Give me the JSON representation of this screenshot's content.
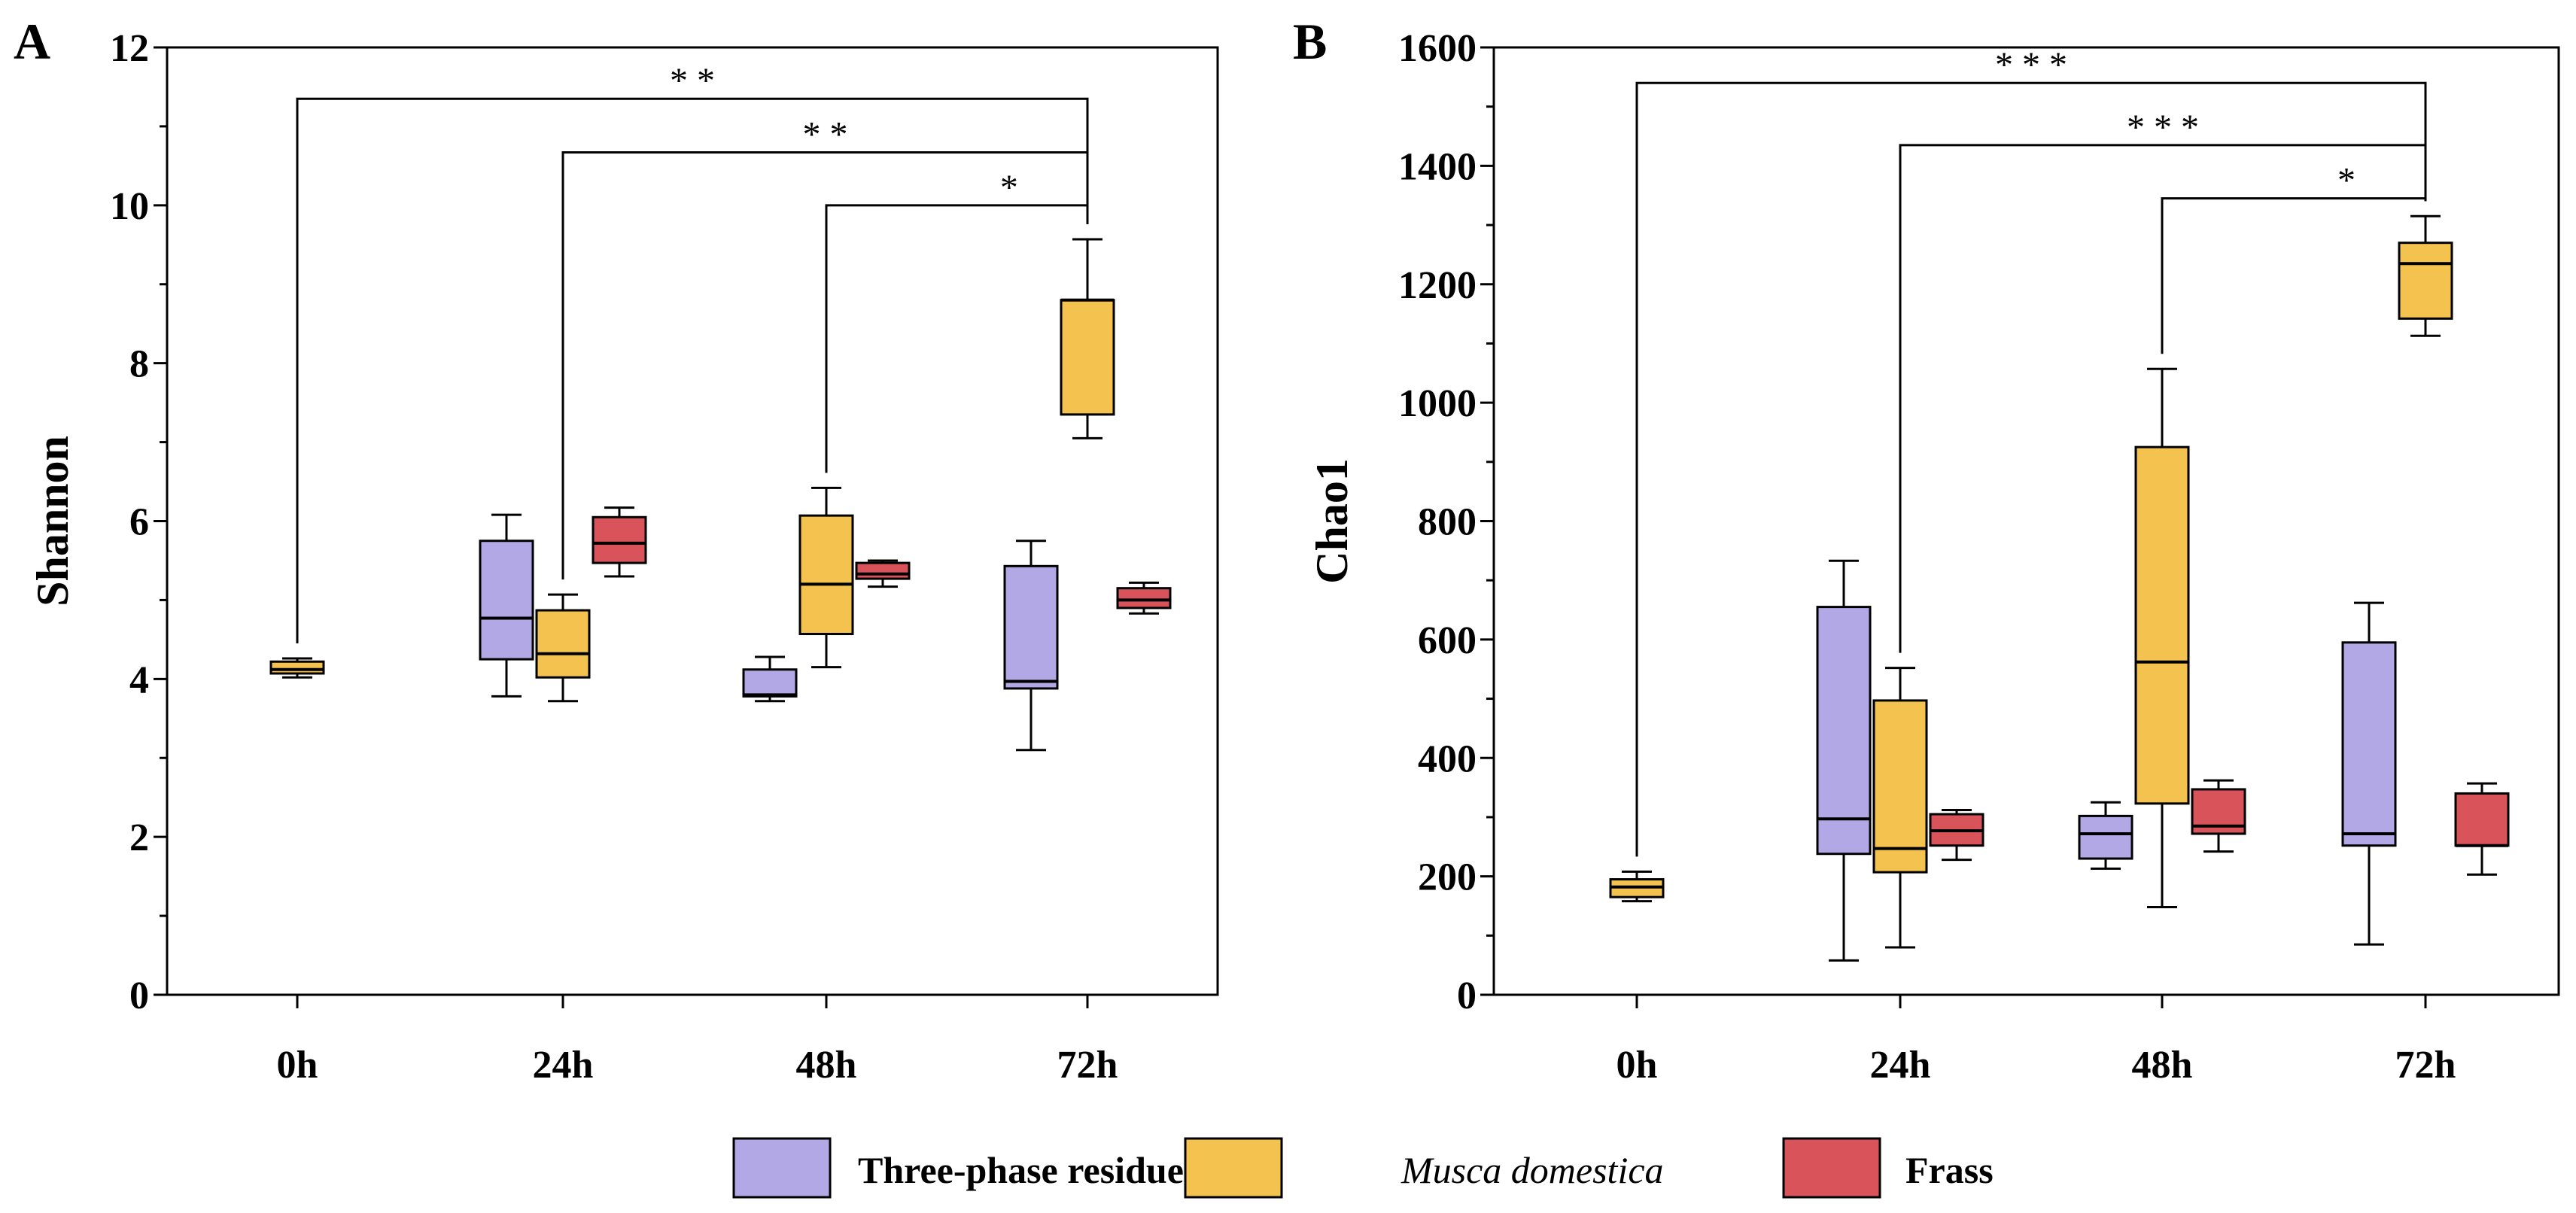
{
  "chart_data": [
    {
      "type": "boxplot",
      "panel_label": "A",
      "title": "",
      "xlabel": "",
      "ylabel": "Shannon",
      "ylim": [
        0,
        12
      ],
      "yticks": [
        "0",
        "2",
        "4",
        "6",
        "8",
        "10",
        "12"
      ],
      "categories": [
        "0h",
        "24h",
        "48h",
        "72h"
      ],
      "boxes": [
        {
          "category": "0h",
          "series": "Musca domestica",
          "min": 4.02,
          "q1": 4.07,
          "median": 4.12,
          "q3": 4.22,
          "max": 4.26
        },
        {
          "category": "24h",
          "series": "Three-phase residue",
          "min": 3.78,
          "q1": 4.25,
          "median": 4.77,
          "q3": 5.75,
          "max": 6.08
        },
        {
          "category": "24h",
          "series": "Musca domestica",
          "min": 3.72,
          "q1": 4.02,
          "median": 4.32,
          "q3": 4.87,
          "max": 5.07
        },
        {
          "category": "24h",
          "series": "Frass",
          "min": 5.3,
          "q1": 5.47,
          "median": 5.72,
          "q3": 6.05,
          "max": 6.17
        },
        {
          "category": "48h",
          "series": "Three-phase residue",
          "min": 3.72,
          "q1": 3.78,
          "median": 3.8,
          "q3": 4.12,
          "max": 4.28
        },
        {
          "category": "48h",
          "series": "Musca domestica",
          "min": 4.15,
          "q1": 4.57,
          "median": 5.2,
          "q3": 6.07,
          "max": 6.42
        },
        {
          "category": "48h",
          "series": "Frass",
          "min": 5.17,
          "q1": 5.27,
          "median": 5.33,
          "q3": 5.47,
          "max": 5.5
        },
        {
          "category": "72h",
          "series": "Three-phase residue",
          "min": 3.1,
          "q1": 3.88,
          "median": 3.97,
          "q3": 5.43,
          "max": 5.75
        },
        {
          "category": "72h",
          "series": "Musca domestica",
          "min": 7.05,
          "q1": 7.35,
          "median": 8.8,
          "q3": 8.8,
          "max": 9.57
        },
        {
          "category": "72h",
          "series": "Frass",
          "min": 4.83,
          "q1": 4.9,
          "median": 5.0,
          "q3": 5.15,
          "max": 5.22
        }
      ],
      "significance": [
        {
          "from": "0h",
          "to": "72h",
          "label": "**",
          "level": 11.35
        },
        {
          "from": "24h",
          "to": "72h",
          "label": "**",
          "level": 10.67
        },
        {
          "from": "48h",
          "to": "72h",
          "label": "*",
          "level": 10.0
        }
      ]
    },
    {
      "type": "boxplot",
      "panel_label": "B",
      "title": "",
      "xlabel": "",
      "ylabel": "Chao1",
      "ylim": [
        0,
        1600
      ],
      "yticks": [
        "0",
        "200",
        "400",
        "600",
        "800",
        "1000",
        "1200",
        "1400",
        "1600"
      ],
      "categories": [
        "0h",
        "24h",
        "48h",
        "72h"
      ],
      "boxes": [
        {
          "category": "0h",
          "series": "Musca domestica",
          "min": 158,
          "q1": 165,
          "median": 182,
          "q3": 195,
          "max": 208
        },
        {
          "category": "24h",
          "series": "Three-phase residue",
          "min": 58,
          "q1": 238,
          "median": 297,
          "q3": 655,
          "max": 733
        },
        {
          "category": "24h",
          "series": "Musca domestica",
          "min": 80,
          "q1": 207,
          "median": 247,
          "q3": 497,
          "max": 552
        },
        {
          "category": "24h",
          "series": "Frass",
          "min": 228,
          "q1": 252,
          "median": 277,
          "q3": 305,
          "max": 312
        },
        {
          "category": "48h",
          "series": "Three-phase residue",
          "min": 213,
          "q1": 230,
          "median": 272,
          "q3": 302,
          "max": 325
        },
        {
          "category": "48h",
          "series": "Musca domestica",
          "min": 148,
          "q1": 323,
          "median": 562,
          "q3": 925,
          "max": 1057
        },
        {
          "category": "48h",
          "series": "Frass",
          "min": 242,
          "q1": 272,
          "median": 285,
          "q3": 347,
          "max": 362
        },
        {
          "category": "72h",
          "series": "Three-phase residue",
          "min": 85,
          "q1": 252,
          "median": 272,
          "q3": 595,
          "max": 662
        },
        {
          "category": "72h",
          "series": "Musca domestica",
          "min": 1113,
          "q1": 1142,
          "median": 1235,
          "q3": 1270,
          "max": 1315
        },
        {
          "category": "72h",
          "series": "Frass",
          "min": 203,
          "q1": 252,
          "median": 252,
          "q3": 340,
          "max": 357
        }
      ],
      "significance": [
        {
          "from": "0h",
          "to": "72h",
          "label": "***",
          "level": 1540
        },
        {
          "from": "24h",
          "to": "72h",
          "label": "***",
          "level": 1435
        },
        {
          "from": "48h",
          "to": "72h",
          "label": "*",
          "level": 1345
        }
      ]
    }
  ],
  "legend": {
    "placement": "bottom-center",
    "items": [
      {
        "label": "Three-phase residue",
        "color": "#b3a8e6",
        "italic": false
      },
      {
        "label": "Musca domestica",
        "color": "#f4c24f",
        "italic": true
      },
      {
        "label": "Frass",
        "color": "#d9535a",
        "italic": false
      }
    ]
  },
  "series_colors": {
    "Three-phase residue": "#b3a8e6",
    "Musca domestica": "#f4c24f",
    "Frass": "#d9535a"
  }
}
